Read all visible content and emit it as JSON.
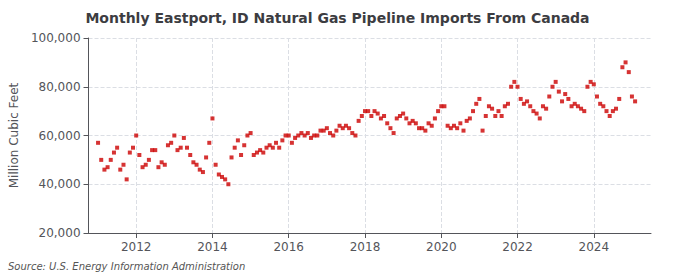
{
  "chart_data": {
    "type": "scatter",
    "title": "Monthly Eastport, ID Natural Gas Pipeline Imports From Canada",
    "ylabel": "Million Cubic Feet",
    "source": "Source: U.S. Energy Information Administration",
    "color": "#cc0000",
    "marker": "square",
    "grid": true,
    "xlim": [
      2010.75,
      2025.5
    ],
    "xticks": [
      2012,
      2014,
      2016,
      2018,
      2020,
      2022,
      2024
    ],
    "ylim": [
      20000,
      100000
    ],
    "yticks": [
      {
        "value": 20000,
        "label": "20,000"
      },
      {
        "value": 40000,
        "label": "40,000"
      },
      {
        "value": 60000,
        "label": "60,000"
      },
      {
        "value": 80000,
        "label": "80,000"
      },
      {
        "value": 100000,
        "label": "100,000"
      }
    ],
    "x": [
      2011.0,
      2011.083,
      2011.167,
      2011.25,
      2011.333,
      2011.417,
      2011.5,
      2011.583,
      2011.667,
      2011.75,
      2011.833,
      2011.917,
      2012.0,
      2012.083,
      2012.167,
      2012.25,
      2012.333,
      2012.417,
      2012.5,
      2012.583,
      2012.667,
      2012.75,
      2012.833,
      2012.917,
      2013.0,
      2013.083,
      2013.167,
      2013.25,
      2013.333,
      2013.417,
      2013.5,
      2013.583,
      2013.667,
      2013.75,
      2013.833,
      2013.917,
      2014.0,
      2014.083,
      2014.167,
      2014.25,
      2014.333,
      2014.417,
      2014.5,
      2014.583,
      2014.667,
      2014.75,
      2014.833,
      2014.917,
      2015.0,
      2015.083,
      2015.167,
      2015.25,
      2015.333,
      2015.417,
      2015.5,
      2015.583,
      2015.667,
      2015.75,
      2015.833,
      2015.917,
      2016.0,
      2016.083,
      2016.167,
      2016.25,
      2016.333,
      2016.417,
      2016.5,
      2016.583,
      2016.667,
      2016.75,
      2016.833,
      2016.917,
      2017.0,
      2017.083,
      2017.167,
      2017.25,
      2017.333,
      2017.417,
      2017.5,
      2017.583,
      2017.667,
      2017.75,
      2017.833,
      2017.917,
      2018.0,
      2018.083,
      2018.167,
      2018.25,
      2018.333,
      2018.417,
      2018.5,
      2018.583,
      2018.667,
      2018.75,
      2018.833,
      2018.917,
      2019.0,
      2019.083,
      2019.167,
      2019.25,
      2019.333,
      2019.417,
      2019.5,
      2019.583,
      2019.667,
      2019.75,
      2019.833,
      2019.917,
      2020.0,
      2020.083,
      2020.167,
      2020.25,
      2020.333,
      2020.417,
      2020.5,
      2020.583,
      2020.667,
      2020.75,
      2020.833,
      2020.917,
      2021.0,
      2021.083,
      2021.167,
      2021.25,
      2021.333,
      2021.417,
      2021.5,
      2021.583,
      2021.667,
      2021.75,
      2021.833,
      2021.917,
      2022.0,
      2022.083,
      2022.167,
      2022.25,
      2022.333,
      2022.417,
      2022.5,
      2022.583,
      2022.667,
      2022.75,
      2022.833,
      2022.917,
      2023.0,
      2023.083,
      2023.167,
      2023.25,
      2023.333,
      2023.417,
      2023.5,
      2023.583,
      2023.667,
      2023.75,
      2023.833,
      2023.917,
      2024.0,
      2024.083,
      2024.167,
      2024.25,
      2024.333,
      2024.417,
      2024.5,
      2024.583,
      2024.667,
      2024.75,
      2024.833,
      2024.917,
      2025.0,
      2025.083
    ],
    "values": [
      57000,
      50000,
      46000,
      47000,
      50000,
      53000,
      55000,
      46000,
      48000,
      42000,
      53000,
      55000,
      60000,
      52000,
      47000,
      48000,
      50000,
      54000,
      54000,
      47000,
      49000,
      48000,
      56000,
      57000,
      60000,
      54000,
      55000,
      59000,
      55000,
      52000,
      49000,
      48000,
      46000,
      45000,
      51000,
      57000,
      67000,
      48000,
      44000,
      43000,
      42000,
      40000,
      51000,
      55000,
      58000,
      52000,
      56000,
      60000,
      61000,
      52000,
      53000,
      54000,
      53000,
      55000,
      56000,
      55000,
      57000,
      55000,
      58000,
      60000,
      60000,
      57000,
      59000,
      60000,
      61000,
      60000,
      61000,
      59000,
      60000,
      60000,
      62000,
      62000,
      63000,
      61000,
      60000,
      62000,
      64000,
      63000,
      64000,
      63000,
      61000,
      60000,
      66000,
      68000,
      70000,
      70000,
      68000,
      70000,
      69000,
      67000,
      68000,
      65000,
      63000,
      61000,
      67000,
      68000,
      69000,
      67000,
      65000,
      66000,
      65000,
      63000,
      63000,
      62000,
      65000,
      64000,
      67000,
      70000,
      72000,
      72000,
      64000,
      63000,
      64000,
      63000,
      65000,
      62000,
      66000,
      67000,
      70000,
      73000,
      75000,
      62000,
      68000,
      72000,
      71000,
      68000,
      70000,
      68000,
      72000,
      73000,
      80000,
      82000,
      80000,
      75000,
      73000,
      74000,
      72000,
      70000,
      69000,
      67000,
      72000,
      71000,
      76000,
      80000,
      82000,
      78000,
      74000,
      77000,
      75000,
      72000,
      73000,
      72000,
      71000,
      70000,
      80000,
      82000,
      81000,
      76000,
      73000,
      72000,
      70000,
      68000,
      70000,
      71000,
      75000,
      88000,
      90000,
      86000,
      76000,
      74000
    ]
  }
}
